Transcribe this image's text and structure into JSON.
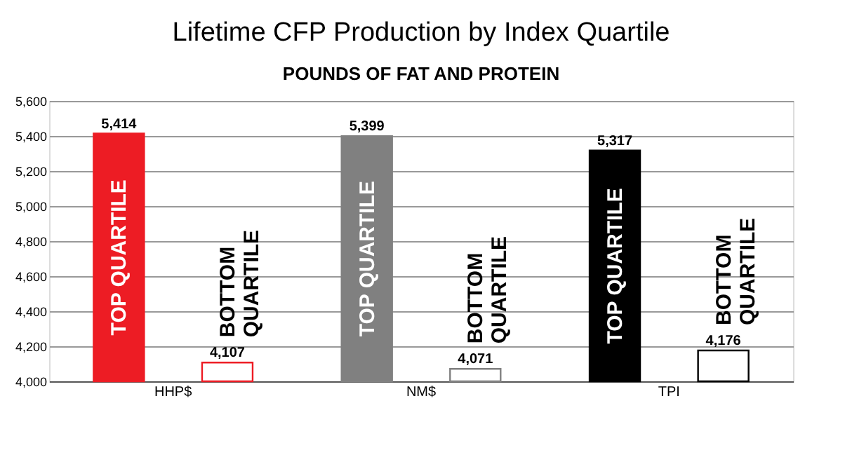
{
  "chart_data": {
    "type": "bar",
    "title": "Lifetime CFP Production by Index Quartile",
    "subtitle": "POUNDS OF FAT AND PROTEIN",
    "categories": [
      "HHP$",
      "NM$",
      "TPI"
    ],
    "series": [
      {
        "name": "TOP QUARTILE",
        "colors": [
          "#ed1c24",
          "#808080",
          "#000000"
        ],
        "values": [
          5414,
          5399,
          5317
        ],
        "value_labels": [
          "5,414",
          "5,399",
          "5,317"
        ]
      },
      {
        "name": "BOTTOM QUARTILE",
        "colors": [
          "#ed1c24",
          "#808080",
          "#000000"
        ],
        "values": [
          4107,
          4071,
          4176
        ],
        "value_labels": [
          "4,107",
          "4,071",
          "4,176"
        ]
      }
    ],
    "ylim": [
      4000,
      5600
    ],
    "yticks": [
      {
        "value": 4000,
        "label": "4,000"
      },
      {
        "value": 4200,
        "label": "4,200"
      },
      {
        "value": 4400,
        "label": "4,400"
      },
      {
        "value": 4600,
        "label": "4,600"
      },
      {
        "value": 4800,
        "label": "4,800"
      },
      {
        "value": 5000,
        "label": "5,000"
      },
      {
        "value": 5200,
        "label": "5,200"
      },
      {
        "value": 5400,
        "label": "5,400"
      },
      {
        "value": 5600,
        "label": "5,600"
      }
    ],
    "grid": "y",
    "legend": false
  }
}
